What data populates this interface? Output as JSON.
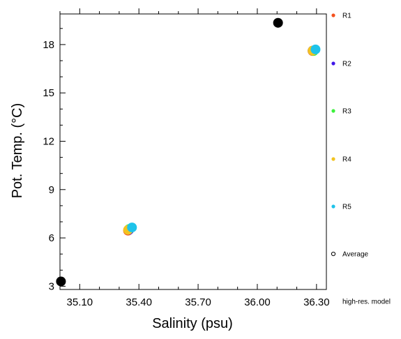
{
  "chart_data": {
    "type": "scatter",
    "xlabel": "Salinity (psu)",
    "ylabel": "Pot. Temp. (°C)",
    "xlim": [
      35.0,
      36.35
    ],
    "ylim": [
      2.8,
      19.9
    ],
    "xticks": [
      35.1,
      35.4,
      35.7,
      36.0,
      36.3
    ],
    "xtick_labels": [
      "35.10",
      "35.40",
      "35.70",
      "36.00",
      "36.30"
    ],
    "yticks": [
      3,
      6,
      9,
      12,
      15,
      18
    ],
    "ytick_labels": [
      "3",
      "6",
      "9",
      "12",
      "15",
      "18"
    ],
    "grid": false,
    "legend_placement": "right",
    "series": [
      {
        "name": "R1",
        "color": "#f4511e",
        "points": [
          [
            35.345,
            6.45
          ],
          [
            36.28,
            17.6
          ]
        ]
      },
      {
        "name": "R2",
        "color": "#3f16e8",
        "points": [
          [
            35.35,
            6.5
          ],
          [
            36.28,
            17.62
          ]
        ]
      },
      {
        "name": "R3",
        "color": "#3cf03c",
        "points": [
          [
            35.35,
            6.55
          ],
          [
            36.285,
            17.6
          ]
        ]
      },
      {
        "name": "R4",
        "color": "#f2c320",
        "points": [
          [
            35.345,
            6.5
          ],
          [
            36.28,
            17.62
          ]
        ]
      },
      {
        "name": "R5",
        "color": "#1ec3ea",
        "points": [
          [
            35.365,
            6.65
          ],
          [
            36.295,
            17.7
          ]
        ]
      },
      {
        "name": "Average",
        "color": "#000000",
        "marker": "open-circle",
        "points": []
      },
      {
        "name": "high-res. model",
        "color": "#000000",
        "points": [
          [
            35.005,
            3.3
          ],
          [
            36.105,
            19.35
          ]
        ]
      }
    ]
  }
}
